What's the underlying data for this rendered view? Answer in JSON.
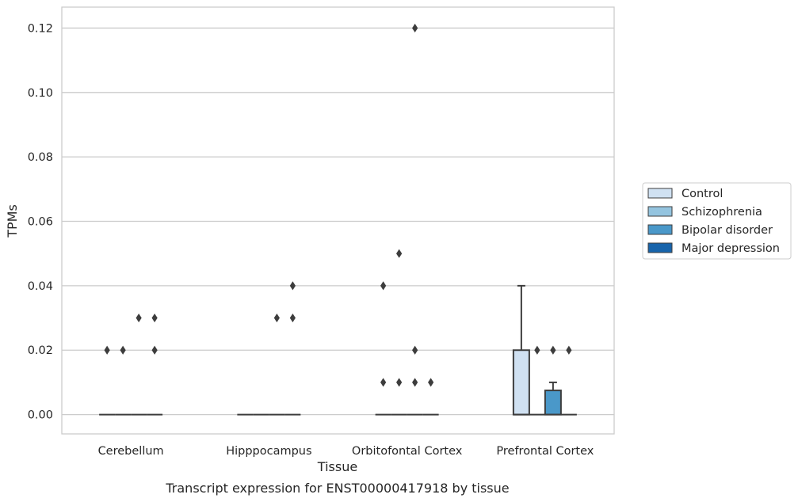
{
  "chart_data": {
    "type": "box",
    "caption": "Transcript expression for ENST00000417918 by tissue",
    "xlabel": "Tissue",
    "ylabel": "TPMs",
    "ylim": [
      -0.006,
      0.1265
    ],
    "yticks": [
      0.0,
      0.02,
      0.04,
      0.06,
      0.08,
      0.1,
      0.12
    ],
    "ytick_labels": [
      "0.00",
      "0.02",
      "0.04",
      "0.06",
      "0.08",
      "0.10",
      "0.12"
    ],
    "grid": "horizontal",
    "legend_position": "right",
    "categories": [
      "Cerebellum",
      "Hipppocampus",
      "Orbitofontal Cortex",
      "Prefrontal Cortex"
    ],
    "series": [
      {
        "name": "Control",
        "color": "#d0e1f2",
        "boxes": [
          {
            "q1": 0,
            "median": 0,
            "q3": 0,
            "whisker_low": 0,
            "whisker_high": 0,
            "outliers": [
              0.02
            ]
          },
          {
            "q1": 0,
            "median": 0,
            "q3": 0,
            "whisker_low": 0,
            "whisker_high": 0,
            "outliers": []
          },
          {
            "q1": 0,
            "median": 0,
            "q3": 0,
            "whisker_low": 0,
            "whisker_high": 0,
            "outliers": [
              0.01,
              0.04
            ]
          },
          {
            "q1": 0,
            "median": 0,
            "q3": 0.02,
            "whisker_low": 0,
            "whisker_high": 0.04,
            "outliers": []
          }
        ]
      },
      {
        "name": "Schizophrenia",
        "color": "#94c4df",
        "boxes": [
          {
            "q1": 0,
            "median": 0,
            "q3": 0,
            "whisker_low": 0,
            "whisker_high": 0,
            "outliers": [
              0.02
            ]
          },
          {
            "q1": 0,
            "median": 0,
            "q3": 0,
            "whisker_low": 0,
            "whisker_high": 0,
            "outliers": []
          },
          {
            "q1": 0,
            "median": 0,
            "q3": 0,
            "whisker_low": 0,
            "whisker_high": 0,
            "outliers": [
              0.01,
              0.05
            ]
          },
          {
            "q1": 0,
            "median": 0,
            "q3": 0,
            "whisker_low": 0,
            "whisker_high": 0,
            "outliers": [
              0.02
            ]
          }
        ]
      },
      {
        "name": "Bipolar disorder",
        "color": "#4a98c9",
        "boxes": [
          {
            "q1": 0,
            "median": 0,
            "q3": 0,
            "whisker_low": 0,
            "whisker_high": 0,
            "outliers": [
              0.03
            ]
          },
          {
            "q1": 0,
            "median": 0,
            "q3": 0,
            "whisker_low": 0,
            "whisker_high": 0,
            "outliers": [
              0.03
            ]
          },
          {
            "q1": 0,
            "median": 0,
            "q3": 0,
            "whisker_low": 0,
            "whisker_high": 0,
            "outliers": [
              0.01,
              0.02,
              0.12
            ]
          },
          {
            "q1": 0,
            "median": 0,
            "q3": 0.0075,
            "whisker_low": 0,
            "whisker_high": 0.01,
            "outliers": [
              0.02
            ]
          }
        ]
      },
      {
        "name": "Major depression",
        "color": "#1764ab",
        "boxes": [
          {
            "q1": 0,
            "median": 0,
            "q3": 0,
            "whisker_low": 0,
            "whisker_high": 0,
            "outliers": [
              0.02,
              0.03
            ]
          },
          {
            "q1": 0,
            "median": 0,
            "q3": 0,
            "whisker_low": 0,
            "whisker_high": 0,
            "outliers": [
              0.03,
              0.04
            ]
          },
          {
            "q1": 0,
            "median": 0,
            "q3": 0,
            "whisker_low": 0,
            "whisker_high": 0,
            "outliers": [
              0.01
            ]
          },
          {
            "q1": 0,
            "median": 0,
            "q3": 0,
            "whisker_low": 0,
            "whisker_high": 0,
            "outliers": [
              0.02
            ]
          }
        ]
      }
    ]
  }
}
